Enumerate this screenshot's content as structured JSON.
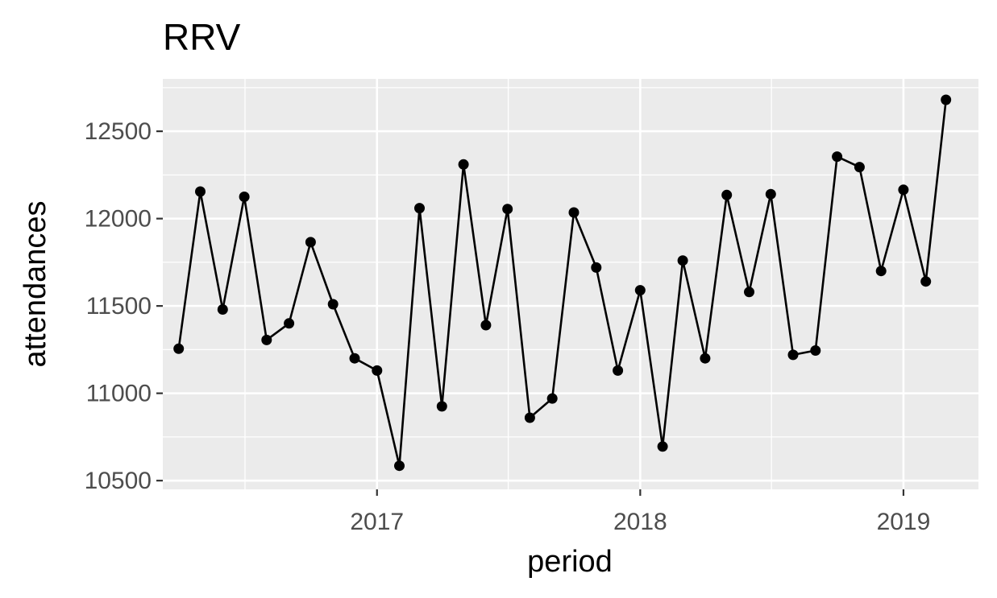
{
  "chart_data": {
    "type": "line",
    "title": "RRV",
    "xlabel": "period",
    "ylabel": "attendances",
    "x_ticks": [
      "2017",
      "2018",
      "2019"
    ],
    "y_ticks": [
      "10500",
      "11000",
      "11500",
      "12000",
      "12500"
    ],
    "ylim": [
      10450,
      12800
    ],
    "xlim": [
      "2016-03-10",
      "2019-04-15"
    ],
    "grid": true,
    "legend": "none",
    "series": [
      {
        "points": [
          {
            "x": "2016-04",
            "y": 11255
          },
          {
            "x": "2016-05",
            "y": 12155
          },
          {
            "x": "2016-06",
            "y": 11480
          },
          {
            "x": "2016-07",
            "y": 12125
          },
          {
            "x": "2016-08",
            "y": 11305
          },
          {
            "x": "2016-09",
            "y": 11400
          },
          {
            "x": "2016-10",
            "y": 11865
          },
          {
            "x": "2016-11",
            "y": 11510
          },
          {
            "x": "2016-12",
            "y": 11200
          },
          {
            "x": "2017-01",
            "y": 11130
          },
          {
            "x": "2017-02",
            "y": 10585
          },
          {
            "x": "2017-03",
            "y": 12060
          },
          {
            "x": "2017-04",
            "y": 10925
          },
          {
            "x": "2017-05",
            "y": 12310
          },
          {
            "x": "2017-06",
            "y": 11390
          },
          {
            "x": "2017-07",
            "y": 12055
          },
          {
            "x": "2017-08",
            "y": 10860
          },
          {
            "x": "2017-09",
            "y": 10970
          },
          {
            "x": "2017-10",
            "y": 12035
          },
          {
            "x": "2017-11",
            "y": 11720
          },
          {
            "x": "2017-12",
            "y": 11130
          },
          {
            "x": "2018-01",
            "y": 11590
          },
          {
            "x": "2018-02",
            "y": 10695
          },
          {
            "x": "2018-03",
            "y": 11760
          },
          {
            "x": "2018-04",
            "y": 11200
          },
          {
            "x": "2018-05",
            "y": 12135
          },
          {
            "x": "2018-06",
            "y": 11580
          },
          {
            "x": "2018-07",
            "y": 12140
          },
          {
            "x": "2018-08",
            "y": 11220
          },
          {
            "x": "2018-09",
            "y": 11245
          },
          {
            "x": "2018-10",
            "y": 12355
          },
          {
            "x": "2018-11",
            "y": 12295
          },
          {
            "x": "2018-12",
            "y": 11700
          },
          {
            "x": "2019-01",
            "y": 12165
          },
          {
            "x": "2019-02",
            "y": 11640
          },
          {
            "x": "2019-03",
            "y": 12680
          }
        ]
      }
    ],
    "colors": {
      "panel": "#ebebeb",
      "grid": "#ffffff",
      "line": "#000000",
      "tick_text": "#4d4d4d"
    }
  }
}
